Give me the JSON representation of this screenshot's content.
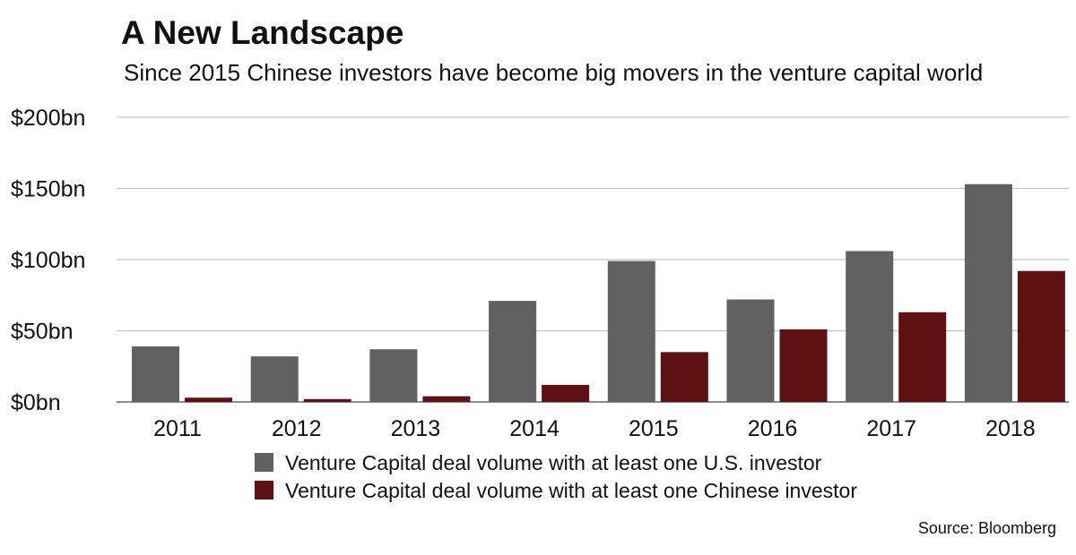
{
  "chart_data": {
    "type": "bar",
    "title": "A New Landscape",
    "subtitle": "Since 2015 Chinese investors have become big movers in the venture capital world",
    "categories": [
      "2011",
      "2012",
      "2013",
      "2014",
      "2015",
      "2016",
      "2017",
      "2018"
    ],
    "series": [
      {
        "name": "Venture Capital deal volume with at least one U.S. investor",
        "color": "#616161",
        "values": [
          39,
          32,
          37,
          71,
          99,
          72,
          106,
          153
        ]
      },
      {
        "name": "Venture Capital deal volume with at least one Chinese investor",
        "color": "#5e1213",
        "values": [
          3,
          2,
          4,
          12,
          35,
          51,
          63,
          92
        ]
      }
    ],
    "ylim": [
      0,
      200
    ],
    "yticks": [
      "$0bn",
      "$50bn",
      "$100bn",
      "$150bn",
      "$200bn"
    ],
    "ytick_values": [
      0,
      50,
      100,
      150,
      200
    ],
    "grid": true,
    "legend_position": "bottom"
  },
  "source": "Source: Bloomberg"
}
